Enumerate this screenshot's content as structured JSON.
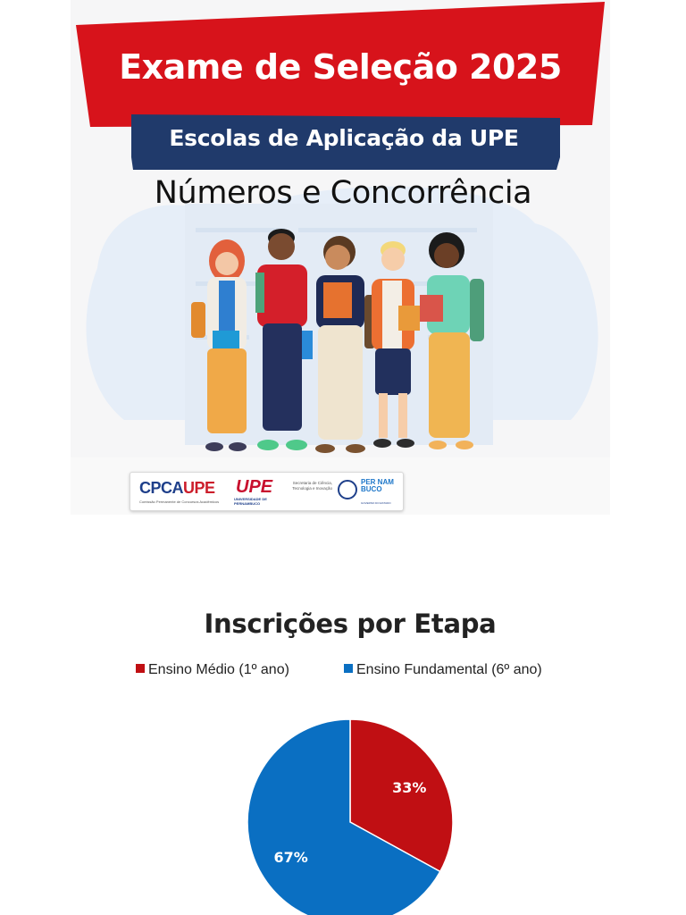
{
  "banner": {
    "title": "Exame de Seleção 2025",
    "subtitle": "Escolas de Aplicação da UPE",
    "overlay_title": "Números e Concorrência",
    "colors": {
      "red": "#d7131b",
      "navy": "#203a6b",
      "background_blob": "#e6eef8"
    }
  },
  "logos": {
    "cpca": "CPCA",
    "cpca_u": "UPE",
    "cpca_sub": "Comissão Permanente de Concursos Acadêmicos",
    "upe": "UPE",
    "upe_sub": "UNIVERSIDADE DE PERNAMBUCO",
    "secretaria": "Secretaria de Ciência, Tecnologia e Inovação",
    "pernambuco": "PER NAM BUCO",
    "pernambuco_sub": "GOVERNO DO ESTADO"
  },
  "chart_data": {
    "type": "pie",
    "title": "Inscrições por Etapa",
    "legend_position": "top",
    "categories": [
      "Ensino Médio (1º ano)",
      "Ensino Fundamental (6º ano)"
    ],
    "values": [
      33,
      67
    ],
    "labels": [
      "33%",
      "67%"
    ],
    "colors": [
      "#c00f13",
      "#0a6fc2"
    ]
  }
}
